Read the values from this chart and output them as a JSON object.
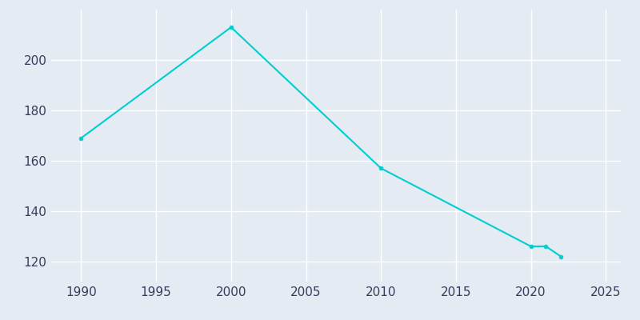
{
  "years": [
    1990,
    2000,
    2010,
    2020,
    2021,
    2022
  ],
  "population": [
    169,
    213,
    157,
    126,
    126,
    122
  ],
  "line_color": "#00CED1",
  "marker": "o",
  "marker_size": 3.5,
  "background_color": "#E4EBF2",
  "plot_bg_color": "#E4EBF2",
  "outer_bg_color": "#E4EBF2",
  "grid_color": "#ffffff",
  "xlabel": "",
  "ylabel": "",
  "xlim": [
    1988,
    2026
  ],
  "ylim": [
    112,
    220
  ],
  "xticks": [
    1990,
    1995,
    2000,
    2005,
    2010,
    2015,
    2020,
    2025
  ],
  "yticks": [
    120,
    140,
    160,
    180,
    200
  ],
  "tick_labelcolor": "#3a3a5c",
  "tick_labelsize": 11
}
